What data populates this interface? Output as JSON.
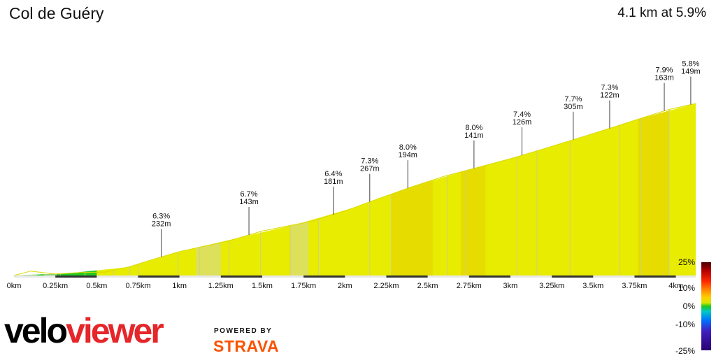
{
  "title": "Col de Guéry",
  "summary": "4.1 km at 5.9%",
  "brand": {
    "velo": "velo",
    "viewer": "viewer",
    "powered_by": "POWERED BY",
    "strava": "STRAVA"
  },
  "gradient_scale": {
    "labels": [
      "25%",
      "10%",
      "0%",
      "-10%",
      "-25%"
    ]
  },
  "colors": {
    "profile_yellow": "#e8ec00",
    "profile_dark_yellow": "#e6dc00",
    "profile_pale": "#dde05a",
    "flat_green": "#22cc22",
    "baseline": "#333333"
  },
  "chart_data": {
    "type": "area",
    "xlabel": "",
    "ylabel": "",
    "xlim": [
      0,
      4.12
    ],
    "x_tick_labels": [
      "0km",
      "0.25km",
      "0.5km",
      "0.75km",
      "1km",
      "1.25km",
      "1.5km",
      "1.75km",
      "2km",
      "2.25km",
      "2.5km",
      "2.75km",
      "3km",
      "3.25km",
      "3.5km",
      "3.75km",
      "4km"
    ],
    "profile": {
      "x": [
        0,
        0.1,
        0.25,
        0.4,
        0.55,
        0.7,
        0.82,
        1.0,
        1.15,
        1.3,
        1.5,
        1.65,
        1.8,
        2.0,
        2.2,
        2.4,
        2.6,
        2.8,
        3.0,
        3.2,
        3.4,
        3.6,
        3.8,
        3.95,
        4.12
      ],
      "climb": [
        0,
        9,
        3,
        6,
        7,
        18,
        31,
        49,
        60,
        71,
        91,
        101,
        111,
        132,
        157,
        181,
        203,
        221,
        239,
        259,
        280,
        301,
        323,
        339,
        352
      ]
    },
    "annotations": [
      {
        "x": 0.89,
        "grade": "6.3%",
        "length": "232m"
      },
      {
        "x": 1.42,
        "grade": "6.7%",
        "length": "143m"
      },
      {
        "x": 1.93,
        "grade": "6.4%",
        "length": "181m"
      },
      {
        "x": 2.15,
        "grade": "7.3%",
        "length": "267m"
      },
      {
        "x": 2.38,
        "grade": "8.0%",
        "length": "194m"
      },
      {
        "x": 2.78,
        "grade": "8.0%",
        "length": "141m"
      },
      {
        "x": 3.07,
        "grade": "7.4%",
        "length": "126m"
      },
      {
        "x": 3.38,
        "grade": "7.7%",
        "length": "305m"
      },
      {
        "x": 3.6,
        "grade": "7.3%",
        "length": "122m"
      },
      {
        "x": 3.93,
        "grade": "7.9%",
        "length": "163m"
      },
      {
        "x": 4.09,
        "grade": "5.8%",
        "length": "149m"
      }
    ],
    "segment_boundaries": [
      0.28,
      0.43,
      0.6,
      0.7,
      0.75,
      0.99,
      1.12,
      1.3,
      1.49,
      1.67,
      1.84,
      2.15,
      2.28,
      2.62,
      2.73,
      3.04,
      3.16,
      3.36,
      3.66,
      3.79,
      3.96
    ],
    "segment_colors": {
      "dark": [
        [
          2.28,
          2.53
        ],
        [
          2.7,
          2.85
        ],
        [
          3.77,
          3.96
        ]
      ],
      "pale": [
        [
          1.67,
          1.78
        ],
        [
          1.1,
          1.25
        ]
      ],
      "green": [
        [
          0.14,
          0.18
        ],
        [
          0.26,
          0.5
        ]
      ]
    }
  }
}
